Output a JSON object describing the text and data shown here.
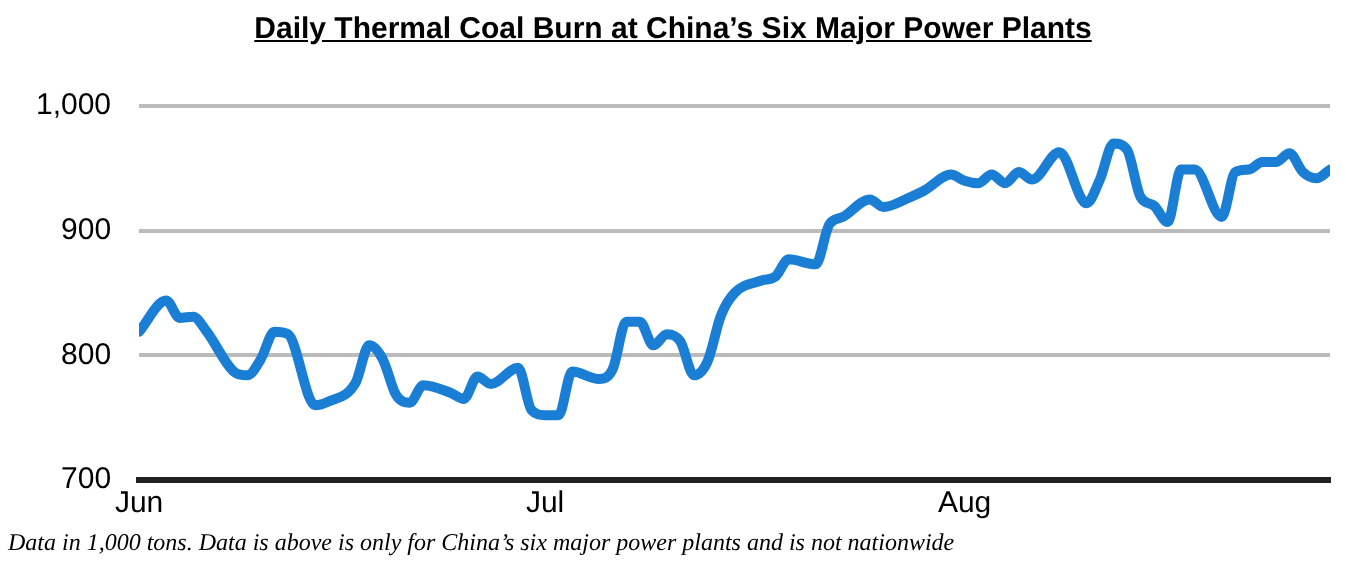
{
  "chart_data": {
    "type": "line",
    "title": "Daily Thermal Coal Burn at China’s Six Major Power Plants",
    "x": [
      "--06-01",
      "--06-03",
      "--06-04",
      "--06-05",
      "--06-06",
      "--06-08",
      "--06-09",
      "--06-10",
      "--06-11",
      "--06-12",
      "--06-14",
      "--06-15",
      "--06-17",
      "--06-18",
      "--06-19",
      "--06-20",
      "--06-21",
      "--06-22",
      "--06-24",
      "--06-25",
      "--06-26",
      "--06-27",
      "--06-29",
      "--06-30",
      "--07-01",
      "--07-02",
      "--07-03",
      "--07-05",
      "--07-06",
      "--07-07",
      "--07-08",
      "--07-09",
      "--07-10",
      "--07-11",
      "--07-12",
      "--07-13",
      "--07-14",
      "--07-15",
      "--07-17",
      "--07-18",
      "--07-19",
      "--07-21",
      "--07-22",
      "--07-23",
      "--07-25",
      "--07-26",
      "--07-28",
      "--07-29",
      "--07-31",
      "--08-01",
      "--08-02",
      "--08-03",
      "--08-04",
      "--08-05",
      "--08-06",
      "--08-08",
      "--08-10",
      "--08-11",
      "--08-12",
      "--08-13",
      "--08-14",
      "--08-15",
      "--08-16",
      "--08-17",
      "--08-18",
      "--08-20",
      "--08-21",
      "--08-22",
      "--08-23",
      "--08-24",
      "--08-25",
      "--08-26",
      "--08-27",
      "--08-28"
    ],
    "series": [
      {
        "color": "#1a7fd4",
        "values": [
          819,
          844,
          830,
          831,
          819,
          787,
          784,
          797,
          819,
          817,
          760,
          763,
          778,
          808,
          797,
          768,
          762,
          776,
          770,
          765,
          783,
          777,
          790,
          756,
          752,
          752,
          787,
          781,
          789,
          827,
          827,
          808,
          817,
          811,
          784,
          795,
          832,
          850,
          860,
          863,
          877,
          873,
          905,
          911,
          925,
          919,
          927,
          932,
          945,
          940,
          938,
          945,
          938,
          947,
          941,
          963,
          922,
          941,
          970,
          965,
          927,
          920,
          907,
          949,
          949,
          911,
          947,
          949,
          955,
          955,
          962,
          947,
          942,
          949
        ]
      }
    ],
    "xlim": [
      "--06-01",
      "--08-28"
    ],
    "xticks": [
      {
        "value": "--06-01",
        "label": "Jun"
      },
      {
        "value": "--07-01",
        "label": "Jul"
      },
      {
        "value": "--08-01",
        "label": "Aug"
      }
    ],
    "ylim": [
      700,
      1000
    ],
    "yticks": [
      700,
      800,
      900,
      {
        "value": 1000,
        "label": "1,000"
      }
    ],
    "grid": "y",
    "legend": false,
    "marker": "none",
    "line_style": "solid",
    "annotations": [
      "Data in 1,000 tons.  Data is above is only for China’s six major power plants and is not nationwide"
    ]
  }
}
